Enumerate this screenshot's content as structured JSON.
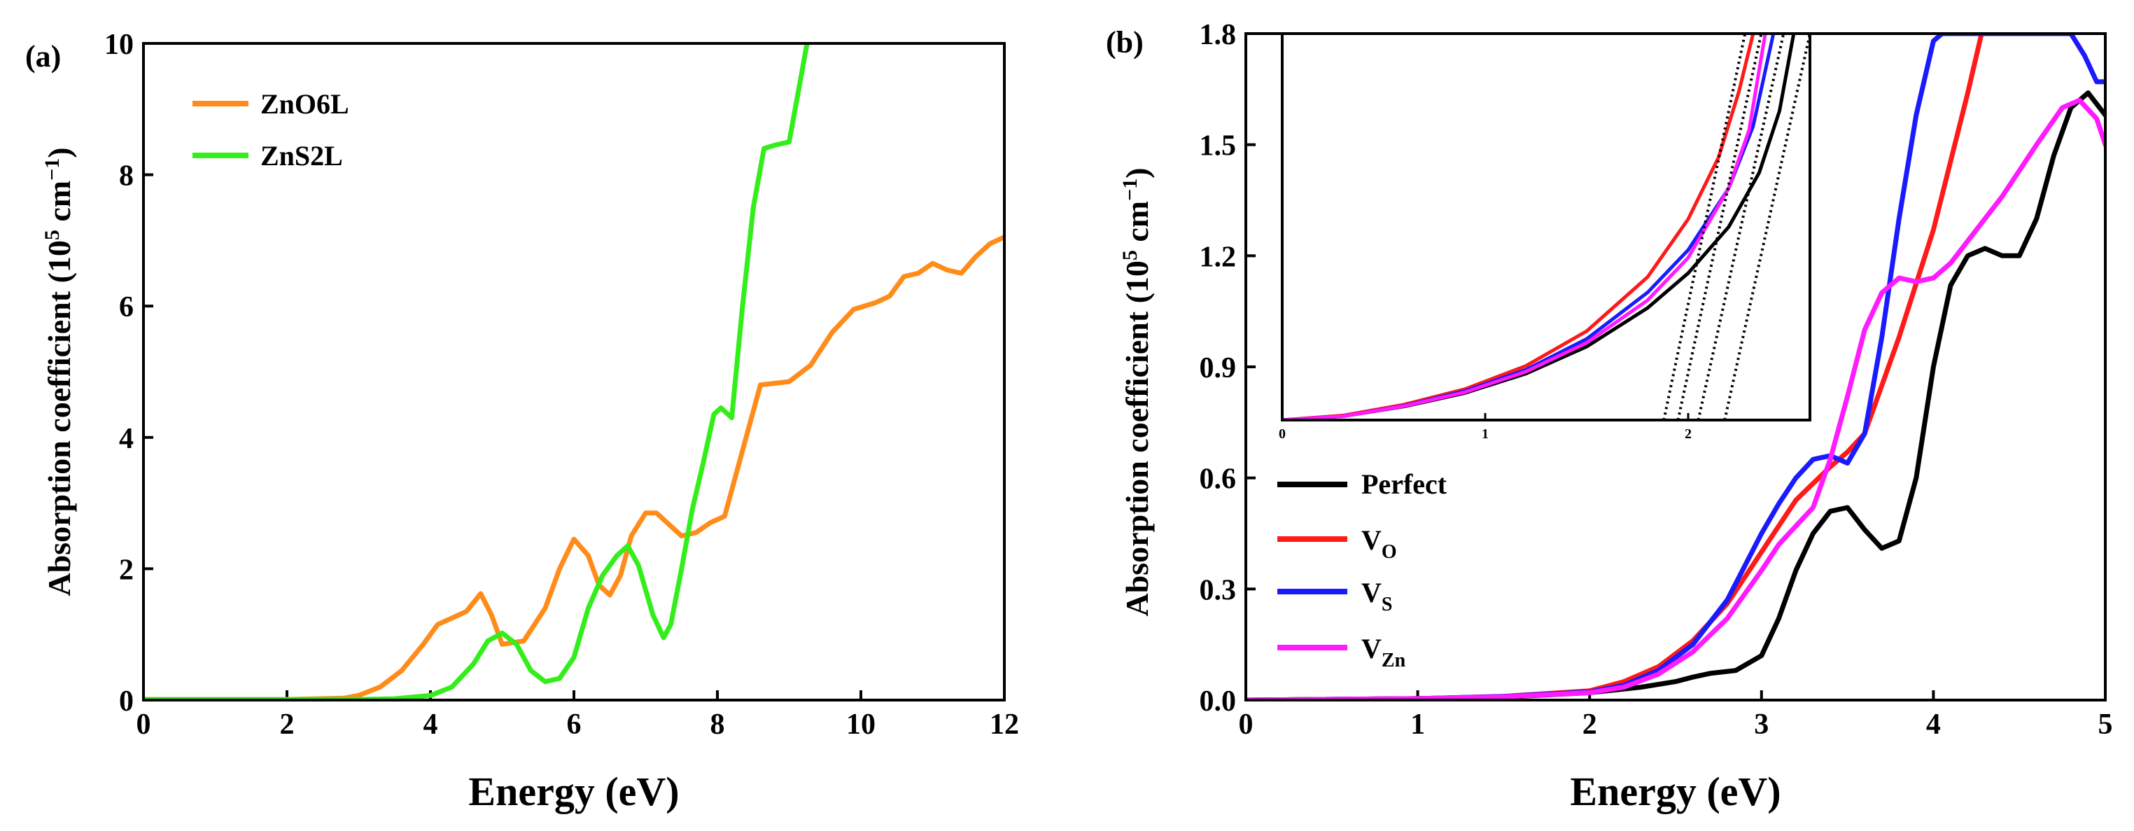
{
  "chart_data": [
    {
      "type": "line",
      "panel_label": "(a)",
      "xlabel": "Energy (eV)",
      "ylabel": {
        "prefix": "Absorption coefficient (10",
        "exp1": "5",
        "mid": " cm",
        "exp2": "−1",
        "suffix": ")"
      },
      "xlim": [
        0,
        12
      ],
      "ylim": [
        0,
        10
      ],
      "xticks": [
        "0",
        "2",
        "4",
        "6",
        "8",
        "10",
        "12"
      ],
      "yticks": [
        "0",
        "2",
        "4",
        "6",
        "8",
        "10"
      ],
      "legend_position": "top-left",
      "series": [
        {
          "name": "ZnO6L",
          "color": "#ff8c1a",
          "x": [
            0,
            2.0,
            2.8,
            3.0,
            3.3,
            3.6,
            3.9,
            4.1,
            4.3,
            4.5,
            4.7,
            4.85,
            5.0,
            5.3,
            5.6,
            5.8,
            6.0,
            6.2,
            6.35,
            6.5,
            6.65,
            6.8,
            7.0,
            7.15,
            7.3,
            7.5,
            7.7,
            7.9,
            8.1,
            8.3,
            8.6,
            9.0,
            9.3,
            9.6,
            9.9,
            10.2,
            10.4,
            10.6,
            10.8,
            11.0,
            11.2,
            11.4,
            11.6,
            11.8,
            12.0
          ],
          "y": [
            0.01,
            0.01,
            0.03,
            0.07,
            0.2,
            0.45,
            0.85,
            1.15,
            1.25,
            1.35,
            1.62,
            1.3,
            0.85,
            0.9,
            1.4,
            2.0,
            2.45,
            2.2,
            1.75,
            1.6,
            1.9,
            2.5,
            2.85,
            2.85,
            2.7,
            2.5,
            2.55,
            2.7,
            2.8,
            3.6,
            4.8,
            4.85,
            5.1,
            5.6,
            5.95,
            6.05,
            6.15,
            6.45,
            6.5,
            6.65,
            6.55,
            6.5,
            6.75,
            6.95,
            7.05
          ]
        },
        {
          "name": "ZnS2L",
          "color": "#33ee1a",
          "x": [
            0,
            3.0,
            3.5,
            4.0,
            4.3,
            4.6,
            4.8,
            5.0,
            5.2,
            5.4,
            5.6,
            5.8,
            6.0,
            6.2,
            6.4,
            6.6,
            6.75,
            6.9,
            7.1,
            7.25,
            7.35,
            7.5,
            7.65,
            7.8,
            7.95,
            8.05,
            8.2,
            8.35,
            8.5,
            8.65,
            8.8,
            9.0,
            9.1,
            9.25
          ],
          "y": [
            0.01,
            0.01,
            0.02,
            0.07,
            0.2,
            0.55,
            0.9,
            1.02,
            0.85,
            0.45,
            0.28,
            0.33,
            0.65,
            1.4,
            1.9,
            2.2,
            2.35,
            2.05,
            1.3,
            0.95,
            1.15,
            2.0,
            2.9,
            3.6,
            4.35,
            4.45,
            4.3,
            6.0,
            7.5,
            8.4,
            8.45,
            8.5,
            9.1,
            10.0
          ]
        }
      ]
    },
    {
      "type": "line",
      "panel_label": "(b)",
      "xlabel": "Energy (eV)",
      "ylabel": {
        "prefix": "Absorption coefficient (10",
        "exp1": "5",
        "mid": " cm",
        "exp2": "−1",
        "suffix": ")"
      },
      "xlim": [
        0,
        5
      ],
      "ylim": [
        0,
        1.8
      ],
      "xticks": [
        "0",
        "1",
        "2",
        "3",
        "4",
        "5"
      ],
      "yticks": [
        "0.0",
        "0.3",
        "0.6",
        "0.9",
        "1.2",
        "1.5",
        "1.8"
      ],
      "legend_position": "lower-left",
      "series": [
        {
          "name": "Perfect",
          "legend_main": "Perfect",
          "legend_sub": "",
          "color": "#000000",
          "x": [
            0,
            1.0,
            1.5,
            2.0,
            2.3,
            2.5,
            2.6,
            2.7,
            2.85,
            3.0,
            3.1,
            3.2,
            3.3,
            3.4,
            3.5,
            3.6,
            3.7,
            3.8,
            3.9,
            4.0,
            4.1,
            4.2,
            4.3,
            4.4,
            4.5,
            4.6,
            4.7,
            4.8,
            4.9,
            5.0
          ],
          "y": [
            0,
            0.004,
            0.008,
            0.02,
            0.035,
            0.05,
            0.062,
            0.072,
            0.08,
            0.12,
            0.22,
            0.35,
            0.45,
            0.51,
            0.52,
            0.46,
            0.41,
            0.43,
            0.6,
            0.9,
            1.12,
            1.2,
            1.22,
            1.2,
            1.2,
            1.3,
            1.47,
            1.6,
            1.64,
            1.58
          ]
        },
        {
          "name": "VO",
          "legend_main": "V",
          "legend_sub": "O",
          "color": "#ff1a1a",
          "x": [
            0,
            1.0,
            1.5,
            2.0,
            2.2,
            2.4,
            2.6,
            2.8,
            3.0,
            3.2,
            3.4,
            3.5,
            3.6,
            3.8,
            4.0,
            4.2,
            4.28
          ],
          "y": [
            0,
            0.004,
            0.01,
            0.025,
            0.05,
            0.09,
            0.16,
            0.26,
            0.4,
            0.54,
            0.63,
            0.67,
            0.72,
            0.98,
            1.27,
            1.64,
            1.8
          ]
        },
        {
          "name": "VS",
          "legend_main": "V",
          "legend_sub": "S",
          "color": "#1a1aff",
          "x": [
            0,
            1.0,
            1.5,
            2.0,
            2.2,
            2.4,
            2.6,
            2.8,
            3.0,
            3.1,
            3.2,
            3.3,
            3.4,
            3.5,
            3.6,
            3.7,
            3.8,
            3.9,
            4.0,
            4.05,
            4.8,
            4.88,
            4.95,
            5.0
          ],
          "y": [
            0,
            0.004,
            0.01,
            0.022,
            0.04,
            0.08,
            0.15,
            0.27,
            0.45,
            0.53,
            0.6,
            0.65,
            0.66,
            0.64,
            0.72,
            0.98,
            1.3,
            1.58,
            1.78,
            1.8,
            1.8,
            1.74,
            1.67,
            1.67
          ]
        },
        {
          "name": "VZn",
          "legend_main": "V",
          "legend_sub": "Zn",
          "color": "#ff1aff",
          "x": [
            0,
            1.0,
            1.5,
            2.0,
            2.2,
            2.4,
            2.6,
            2.8,
            3.0,
            3.1,
            3.2,
            3.3,
            3.4,
            3.5,
            3.6,
            3.7,
            3.8,
            3.9,
            4.0,
            4.1,
            4.2,
            4.4,
            4.6,
            4.75,
            4.85,
            4.95,
            5.0
          ],
          "y": [
            0,
            0.004,
            0.009,
            0.02,
            0.035,
            0.07,
            0.13,
            0.22,
            0.35,
            0.42,
            0.47,
            0.52,
            0.65,
            0.82,
            1.0,
            1.1,
            1.14,
            1.13,
            1.14,
            1.18,
            1.24,
            1.36,
            1.5,
            1.6,
            1.62,
            1.57,
            1.5
          ]
        }
      ],
      "inset": {
        "xlim": [
          0,
          2.6
        ],
        "ylim": [
          0,
          1
        ],
        "xticks": [
          "0",
          "1",
          "2"
        ],
        "series": [
          {
            "name": "Perfect",
            "color": "#000000",
            "x": [
              0,
              0.3,
              0.6,
              0.9,
              1.2,
              1.5,
              1.8,
              2.0,
              2.2,
              2.35,
              2.45,
              2.52
            ],
            "y": [
              0,
              0.01,
              0.035,
              0.07,
              0.12,
              0.19,
              0.29,
              0.38,
              0.5,
              0.64,
              0.8,
              1.0
            ]
          },
          {
            "name": "VO",
            "color": "#ff1a1a",
            "x": [
              0,
              0.3,
              0.6,
              0.9,
              1.2,
              1.5,
              1.8,
              2.0,
              2.15,
              2.25,
              2.32
            ],
            "y": [
              0,
              0.012,
              0.04,
              0.08,
              0.14,
              0.23,
              0.37,
              0.52,
              0.68,
              0.85,
              1.0
            ]
          },
          {
            "name": "VS",
            "color": "#1a1aff",
            "x": [
              0,
              0.3,
              0.6,
              0.9,
              1.2,
              1.5,
              1.8,
              2.0,
              2.2,
              2.32,
              2.42
            ],
            "y": [
              0,
              0.01,
              0.037,
              0.075,
              0.13,
              0.21,
              0.33,
              0.44,
              0.6,
              0.76,
              1.0
            ]
          },
          {
            "name": "VZn",
            "color": "#ff1aff",
            "x": [
              0,
              0.3,
              0.6,
              0.9,
              1.2,
              1.5,
              1.8,
              2.0,
              2.2,
              2.3,
              2.38
            ],
            "y": [
              0,
              0.01,
              0.036,
              0.072,
              0.125,
              0.2,
              0.31,
              0.42,
              0.6,
              0.75,
              1.0
            ]
          }
        ],
        "tangents": [
          {
            "x": [
              1.88,
              2.28
            ],
            "y": [
              0,
              1.0
            ]
          },
          {
            "x": [
              1.95,
              2.36
            ],
            "y": [
              0,
              1.0
            ]
          },
          {
            "x": [
              2.05,
              2.47
            ],
            "y": [
              0,
              1.0
            ]
          },
          {
            "x": [
              2.18,
              2.6
            ],
            "y": [
              0,
              1.0
            ]
          }
        ]
      }
    }
  ]
}
